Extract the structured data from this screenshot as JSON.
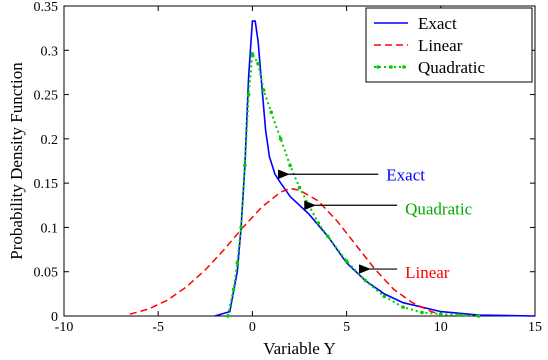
{
  "chart_data": {
    "type": "line",
    "title": "",
    "xlabel": "Variable Y",
    "ylabel": "Probability Density Function",
    "xlim": [
      -10,
      15
    ],
    "ylim": [
      0,
      0.35
    ],
    "xticks": [
      -10,
      -5,
      0,
      5,
      10,
      15
    ],
    "xtick_labels": [
      "-10",
      "-5",
      "0",
      "5",
      "10",
      "15"
    ],
    "yticks": [
      0,
      0.05,
      0.1,
      0.15,
      0.2,
      0.25,
      0.3,
      0.35
    ],
    "ytick_labels": [
      "0",
      "0.05",
      "0.1",
      "0.15",
      "0.2",
      "0.25",
      "0.3",
      "0.35"
    ],
    "grid": false,
    "legend_position": "top-right",
    "series": [
      {
        "name": "Exact",
        "color": "#0000ff",
        "style": "solid",
        "x": [
          -2,
          -1.2,
          -0.8,
          -0.6,
          -0.4,
          -0.2,
          0,
          0.15,
          0.3,
          0.5,
          0.7,
          0.9,
          1.2,
          1.5,
          2,
          2.5,
          3,
          4,
          5,
          6,
          7,
          8,
          9,
          10,
          11,
          12,
          15
        ],
        "y": [
          0,
          0.005,
          0.05,
          0.1,
          0.17,
          0.27,
          0.333,
          0.333,
          0.31,
          0.26,
          0.21,
          0.18,
          0.16,
          0.15,
          0.135,
          0.125,
          0.115,
          0.09,
          0.06,
          0.04,
          0.025,
          0.015,
          0.01,
          0.005,
          0.003,
          0.001,
          0
        ]
      },
      {
        "name": "Linear",
        "color": "#ff0000",
        "style": "dashed",
        "x": [
          -6.5,
          -5.5,
          -4.5,
          -3.5,
          -2.5,
          -1.5,
          -0.5,
          0.5,
          1.5,
          2,
          2.5,
          3.5,
          4.5,
          5.5,
          6.5,
          7.5,
          8.5,
          9.5,
          10
        ],
        "y": [
          0.002,
          0.008,
          0.018,
          0.033,
          0.052,
          0.075,
          0.1,
          0.123,
          0.14,
          0.144,
          0.142,
          0.13,
          0.107,
          0.08,
          0.053,
          0.03,
          0.015,
          0.005,
          0.002
        ]
      },
      {
        "name": "Quadratic",
        "color": "#00cc00",
        "style": "dotted-marker",
        "x": [
          -1.3,
          -1,
          -0.8,
          -0.6,
          -0.4,
          -0.2,
          0,
          0.3,
          0.6,
          1,
          1.5,
          2,
          2.5,
          3,
          3.5,
          4,
          5,
          6,
          7,
          8,
          9,
          10,
          11,
          12
        ],
        "y": [
          0,
          0.03,
          0.06,
          0.1,
          0.17,
          0.25,
          0.296,
          0.285,
          0.255,
          0.23,
          0.2,
          0.17,
          0.145,
          0.125,
          0.105,
          0.09,
          0.062,
          0.04,
          0.022,
          0.01,
          0.004,
          0.002,
          0.001,
          0
        ]
      }
    ],
    "annotations": [
      {
        "text": "Exact",
        "color": "#0000ff",
        "arrow_to": [
          1.5,
          0.16
        ],
        "label_at": [
          7,
          0.16
        ]
      },
      {
        "text": "Quadratic",
        "color": "#00aa00",
        "arrow_to": [
          2.9,
          0.125
        ],
        "label_at": [
          8,
          0.125
        ]
      },
      {
        "text": "Linear",
        "color": "#ff0000",
        "arrow_to": [
          5.8,
          0.053
        ],
        "label_at": [
          8,
          0.053
        ]
      }
    ]
  }
}
